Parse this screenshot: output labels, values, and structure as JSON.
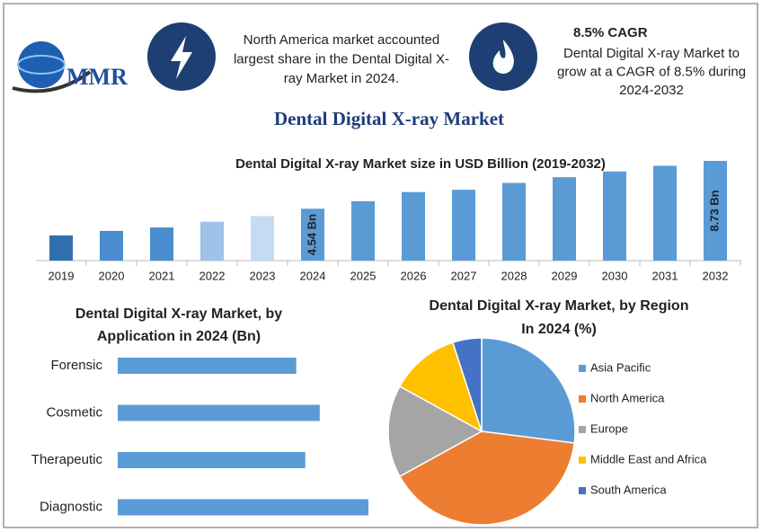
{
  "header": {
    "logo": "MMR",
    "note1": [
      "North America market accounted",
      "largest share in the Dental Digital X-",
      "ray Market in 2024."
    ],
    "cagr": "8.5% CAGR",
    "note2": [
      "Dental Digital X-ray Market to",
      "grow at a CAGR of 8.5% during",
      "2024-2032"
    ]
  },
  "title": "Dental Digital X-ray Market",
  "chart_data": [
    {
      "type": "bar",
      "title": [
        "Dental Digital X-ray Market size in USD Billion (2019-2032)"
      ],
      "categories": [
        "2019",
        "2020",
        "2021",
        "2022",
        "2023",
        "2024",
        "2025",
        "2026",
        "2027",
        "2028",
        "2029",
        "2030",
        "2031",
        "2032"
      ],
      "values": [
        2.2,
        2.6,
        2.9,
        3.4,
        3.9,
        4.54,
        5.2,
        6.0,
        6.2,
        6.8,
        7.3,
        7.8,
        8.3,
        8.73
      ],
      "value_labels": [
        null,
        null,
        null,
        null,
        null,
        "4.54 Bn",
        null,
        null,
        null,
        null,
        null,
        null,
        null,
        "8.73 Bn"
      ],
      "colors": [
        "#2f6fad",
        "#4a8cce",
        "#4a8cce",
        "#9fc2e8",
        "#c6dbf2",
        "#5b9bd5",
        "#5b9bd5",
        "#5b9bd5",
        "#5b9bd5",
        "#5b9bd5",
        "#5b9bd5",
        "#5b9bd5",
        "#5b9bd5",
        "#5b9bd5"
      ]
    },
    {
      "type": "hbar",
      "title": [
        "Dental Digital X-ray Market, by",
        "Application in 2024 (Bn)"
      ],
      "categories": [
        "Forensic",
        "Cosmetic",
        "Therapeutic",
        "Diagnostic"
      ],
      "values": [
        0.99,
        1.12,
        1.04,
        1.39
      ],
      "color": "#5b9bd5"
    },
    {
      "type": "pie",
      "title": [
        "Dental Digital X-ray Market, by Region",
        "In 2024 (%)"
      ],
      "series": [
        {
          "name": "Asia Pacific",
          "color": "#5b9bd5",
          "value": 27
        },
        {
          "name": "North America",
          "color": "#ed7d31",
          "value": 40
        },
        {
          "name": "Europe",
          "color": "#a5a5a5",
          "value": 16
        },
        {
          "name": "Middle East and Africa",
          "color": "#ffc000",
          "value": 12
        },
        {
          "name": "South America",
          "color": "#4472c4",
          "value": 5
        }
      ]
    }
  ]
}
